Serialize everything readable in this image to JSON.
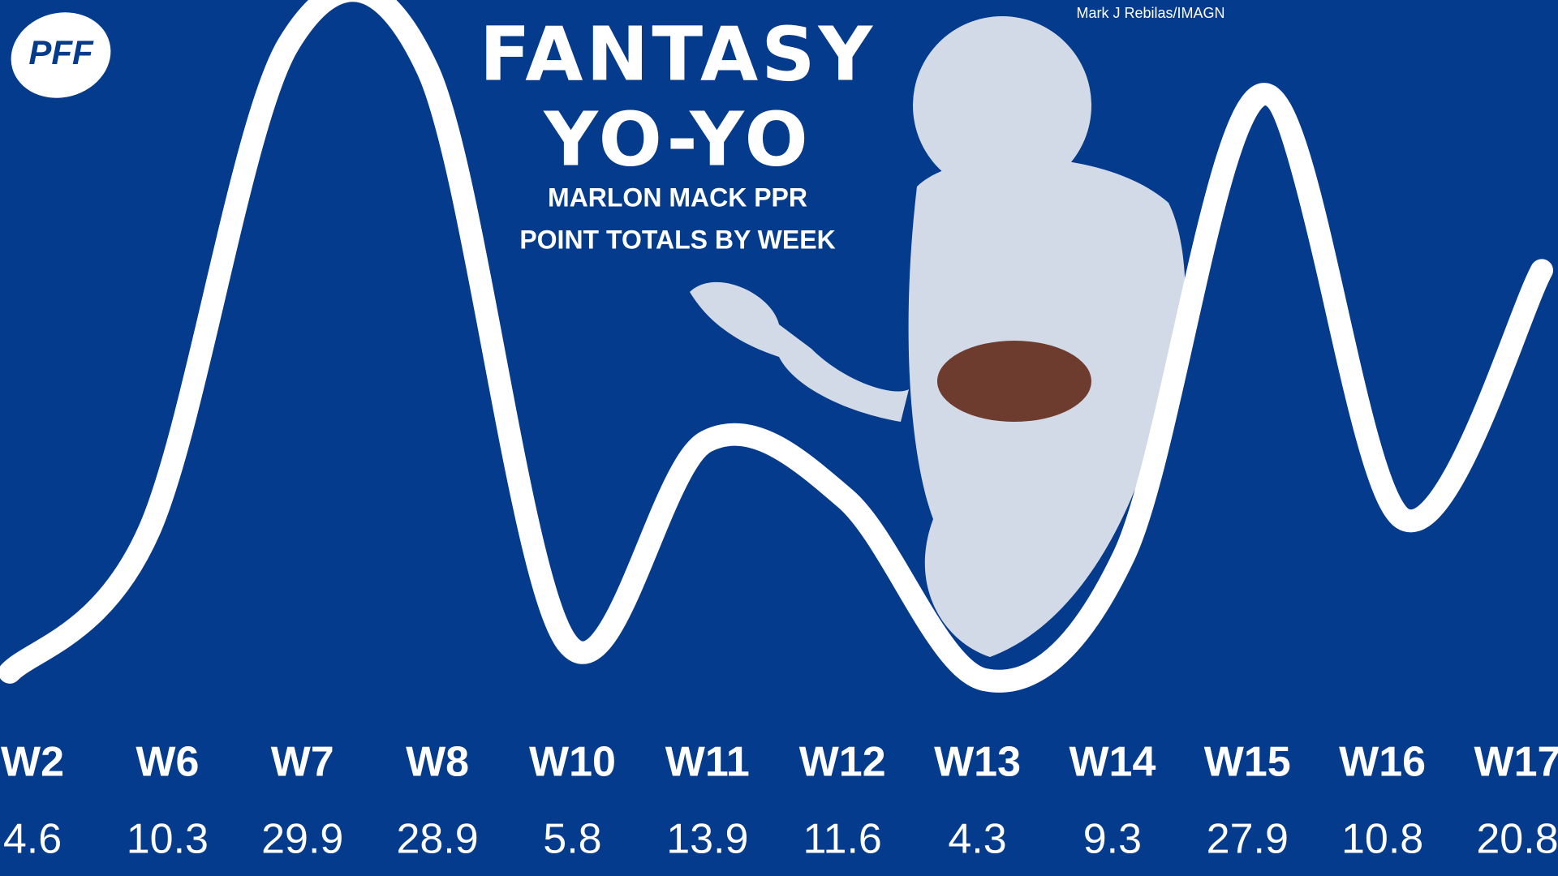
{
  "logo": "PFF",
  "credit": "Mark J Rebilas/IMAGN",
  "chart_data": {
    "type": "line",
    "title": [
      "FANTASY",
      "YO-YO"
    ],
    "subtitle": [
      "MARLON MACK PPR",
      "POINT TOTALS BY WEEK"
    ],
    "categories": [
      "W2",
      "W6",
      "W7",
      "W8",
      "W10",
      "W11",
      "W12",
      "W13",
      "W14",
      "W15",
      "W16",
      "W17"
    ],
    "values": [
      4.6,
      10.3,
      29.9,
      28.9,
      5.8,
      13.9,
      11.6,
      4.3,
      9.3,
      27.9,
      10.8,
      20.8
    ],
    "color": "#ffffff"
  }
}
